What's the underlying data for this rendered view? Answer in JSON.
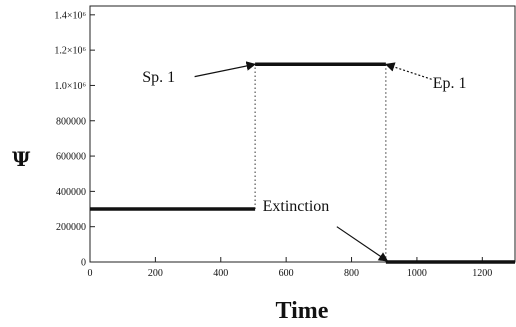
{
  "chart_data": {
    "type": "line",
    "xlabel": "Time",
    "ylabel": "Ψ",
    "xlim": [
      0,
      1300
    ],
    "ylim": [
      0,
      1450000
    ],
    "x_ticks": [
      0,
      200,
      400,
      600,
      800,
      1000,
      1200
    ],
    "y_ticks": [
      {
        "value": 0,
        "label": "0"
      },
      {
        "value": 200000,
        "label": "200000"
      },
      {
        "value": 400000,
        "label": "400000"
      },
      {
        "value": 600000,
        "label": "600000"
      },
      {
        "value": 800000,
        "label": "800000"
      },
      {
        "value": 1000000,
        "label": "1.0×10⁶"
      },
      {
        "value": 1200000,
        "label": "1.2×10⁶"
      },
      {
        "value": 1400000,
        "label": "1.4×10⁶"
      }
    ],
    "segments": [
      {
        "x": [
          0,
          505
        ],
        "y": [
          300000,
          300000
        ]
      },
      {
        "x": [
          505,
          905
        ],
        "y": [
          1120000,
          1120000
        ]
      },
      {
        "x": [
          905,
          1300
        ],
        "y": [
          0,
          0
        ]
      }
    ],
    "transitions": [
      {
        "x": 505,
        "y_from": 300000,
        "y_to": 1120000
      },
      {
        "x": 905,
        "y_from": 1120000,
        "y_to": 0
      }
    ],
    "annotations": [
      {
        "text": "Sp. 1",
        "target_x": 505,
        "target_y": 1120000,
        "style": "solid",
        "text_x": 210,
        "text_y": 1020000,
        "arrow_start_x": 320,
        "arrow_start_y": 1050000
      },
      {
        "text": "Ep. 1",
        "target_x": 905,
        "target_y": 1120000,
        "style": "dashed",
        "text_x": 1100,
        "text_y": 985000,
        "arrow_start_x": 1045,
        "arrow_start_y": 1035000
      },
      {
        "text": "Extinction",
        "target_x": 910,
        "target_y": 5000,
        "style": "solid",
        "text_x": 630,
        "text_y": 290000,
        "arrow_start_x": 755,
        "arrow_start_y": 200000
      }
    ],
    "grid": false
  }
}
